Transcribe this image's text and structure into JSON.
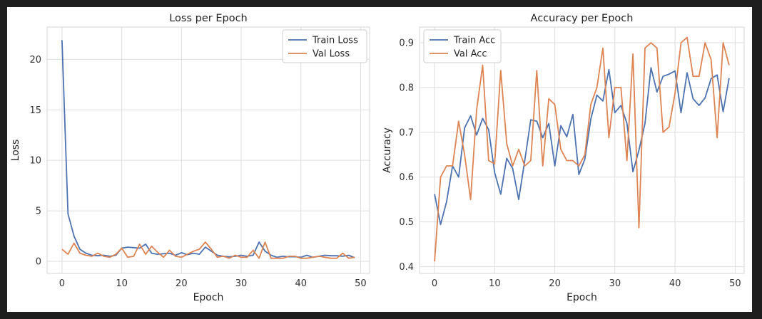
{
  "colors": {
    "train": "#4c72b0",
    "val": "#dd8452"
  },
  "chart_data": [
    {
      "type": "line",
      "title": "Loss per Epoch",
      "xlabel": "Epoch",
      "ylabel": "Loss",
      "xlim": [
        -2.5,
        51.5
      ],
      "ylim": [
        -1.2,
        23.2
      ],
      "xticks": [
        0,
        10,
        20,
        30,
        40,
        50
      ],
      "yticks": [
        0,
        5,
        10,
        15,
        20
      ],
      "grid": true,
      "legend_position": "top-right",
      "x": [
        0,
        1,
        2,
        3,
        4,
        5,
        6,
        7,
        8,
        9,
        10,
        11,
        12,
        13,
        14,
        15,
        16,
        17,
        18,
        19,
        20,
        21,
        22,
        23,
        24,
        25,
        26,
        27,
        28,
        29,
        30,
        31,
        32,
        33,
        34,
        35,
        36,
        37,
        38,
        39,
        40,
        41,
        42,
        43,
        44,
        45,
        46,
        47,
        48,
        49
      ],
      "series": [
        {
          "name": "Train Loss",
          "color_key": "train",
          "values": [
            21.9,
            4.7,
            2.5,
            1.2,
            0.8,
            0.6,
            0.55,
            0.6,
            0.5,
            0.6,
            1.3,
            1.4,
            1.35,
            1.3,
            1.7,
            0.8,
            0.7,
            0.75,
            0.8,
            0.6,
            0.85,
            0.65,
            0.8,
            0.7,
            1.4,
            1.0,
            0.6,
            0.5,
            0.45,
            0.5,
            0.6,
            0.5,
            0.6,
            1.9,
            1.0,
            0.6,
            0.4,
            0.5,
            0.45,
            0.45,
            0.4,
            0.6,
            0.4,
            0.5,
            0.6,
            0.55,
            0.55,
            0.5,
            0.6,
            0.35
          ]
        },
        {
          "name": "Val Loss",
          "color_key": "val",
          "values": [
            1.2,
            0.7,
            1.8,
            0.8,
            0.6,
            0.5,
            0.8,
            0.5,
            0.4,
            0.7,
            1.3,
            0.4,
            0.5,
            1.7,
            0.7,
            1.5,
            0.9,
            0.4,
            1.1,
            0.5,
            0.4,
            0.7,
            1.0,
            1.2,
            1.9,
            1.2,
            0.4,
            0.5,
            0.3,
            0.6,
            0.4,
            0.4,
            1.1,
            0.3,
            1.9,
            0.3,
            0.3,
            0.3,
            0.5,
            0.5,
            0.3,
            0.3,
            0.4,
            0.5,
            0.4,
            0.3,
            0.3,
            0.8,
            0.3,
            0.4
          ]
        }
      ]
    },
    {
      "type": "line",
      "title": "Accuracy per Epoch",
      "xlabel": "Epoch",
      "ylabel": "Accuracy",
      "xlim": [
        -2.5,
        51.5
      ],
      "ylim": [
        0.385,
        0.935
      ],
      "xticks": [
        0,
        10,
        20,
        30,
        40,
        50
      ],
      "yticks": [
        0.4,
        0.5,
        0.6,
        0.7,
        0.8,
        0.9
      ],
      "grid": true,
      "legend_position": "top-left",
      "x": [
        0,
        1,
        2,
        3,
        4,
        5,
        6,
        7,
        8,
        9,
        10,
        11,
        12,
        13,
        14,
        15,
        16,
        17,
        18,
        19,
        20,
        21,
        22,
        23,
        24,
        25,
        26,
        27,
        28,
        29,
        30,
        31,
        32,
        33,
        34,
        35,
        36,
        37,
        38,
        39,
        40,
        41,
        42,
        43,
        44,
        45,
        46,
        47,
        48,
        49
      ],
      "series": [
        {
          "name": "Train Acc",
          "color_key": "train",
          "values": [
            0.562,
            0.494,
            0.545,
            0.625,
            0.6,
            0.71,
            0.737,
            0.694,
            0.731,
            0.706,
            0.61,
            0.562,
            0.642,
            0.619,
            0.55,
            0.637,
            0.728,
            0.725,
            0.688,
            0.72,
            0.625,
            0.715,
            0.69,
            0.74,
            0.606,
            0.64,
            0.73,
            0.783,
            0.77,
            0.84,
            0.744,
            0.76,
            0.72,
            0.612,
            0.66,
            0.72,
            0.844,
            0.79,
            0.825,
            0.83,
            0.837,
            0.744,
            0.833,
            0.775,
            0.76,
            0.777,
            0.82,
            0.828,
            0.746,
            0.821
          ]
        },
        {
          "name": "Val Acc",
          "color_key": "val",
          "values": [
            0.412,
            0.6,
            0.625,
            0.625,
            0.725,
            0.65,
            0.55,
            0.75,
            0.85,
            0.637,
            0.63,
            0.838,
            0.675,
            0.625,
            0.662,
            0.625,
            0.637,
            0.838,
            0.625,
            0.775,
            0.762,
            0.662,
            0.637,
            0.637,
            0.625,
            0.65,
            0.762,
            0.8,
            0.888,
            0.688,
            0.8,
            0.8,
            0.637,
            0.875,
            0.487,
            0.888,
            0.9,
            0.888,
            0.7,
            0.712,
            0.787,
            0.9,
            0.912,
            0.825,
            0.825,
            0.9,
            0.862,
            0.688,
            0.9,
            0.85
          ]
        }
      ]
    }
  ]
}
